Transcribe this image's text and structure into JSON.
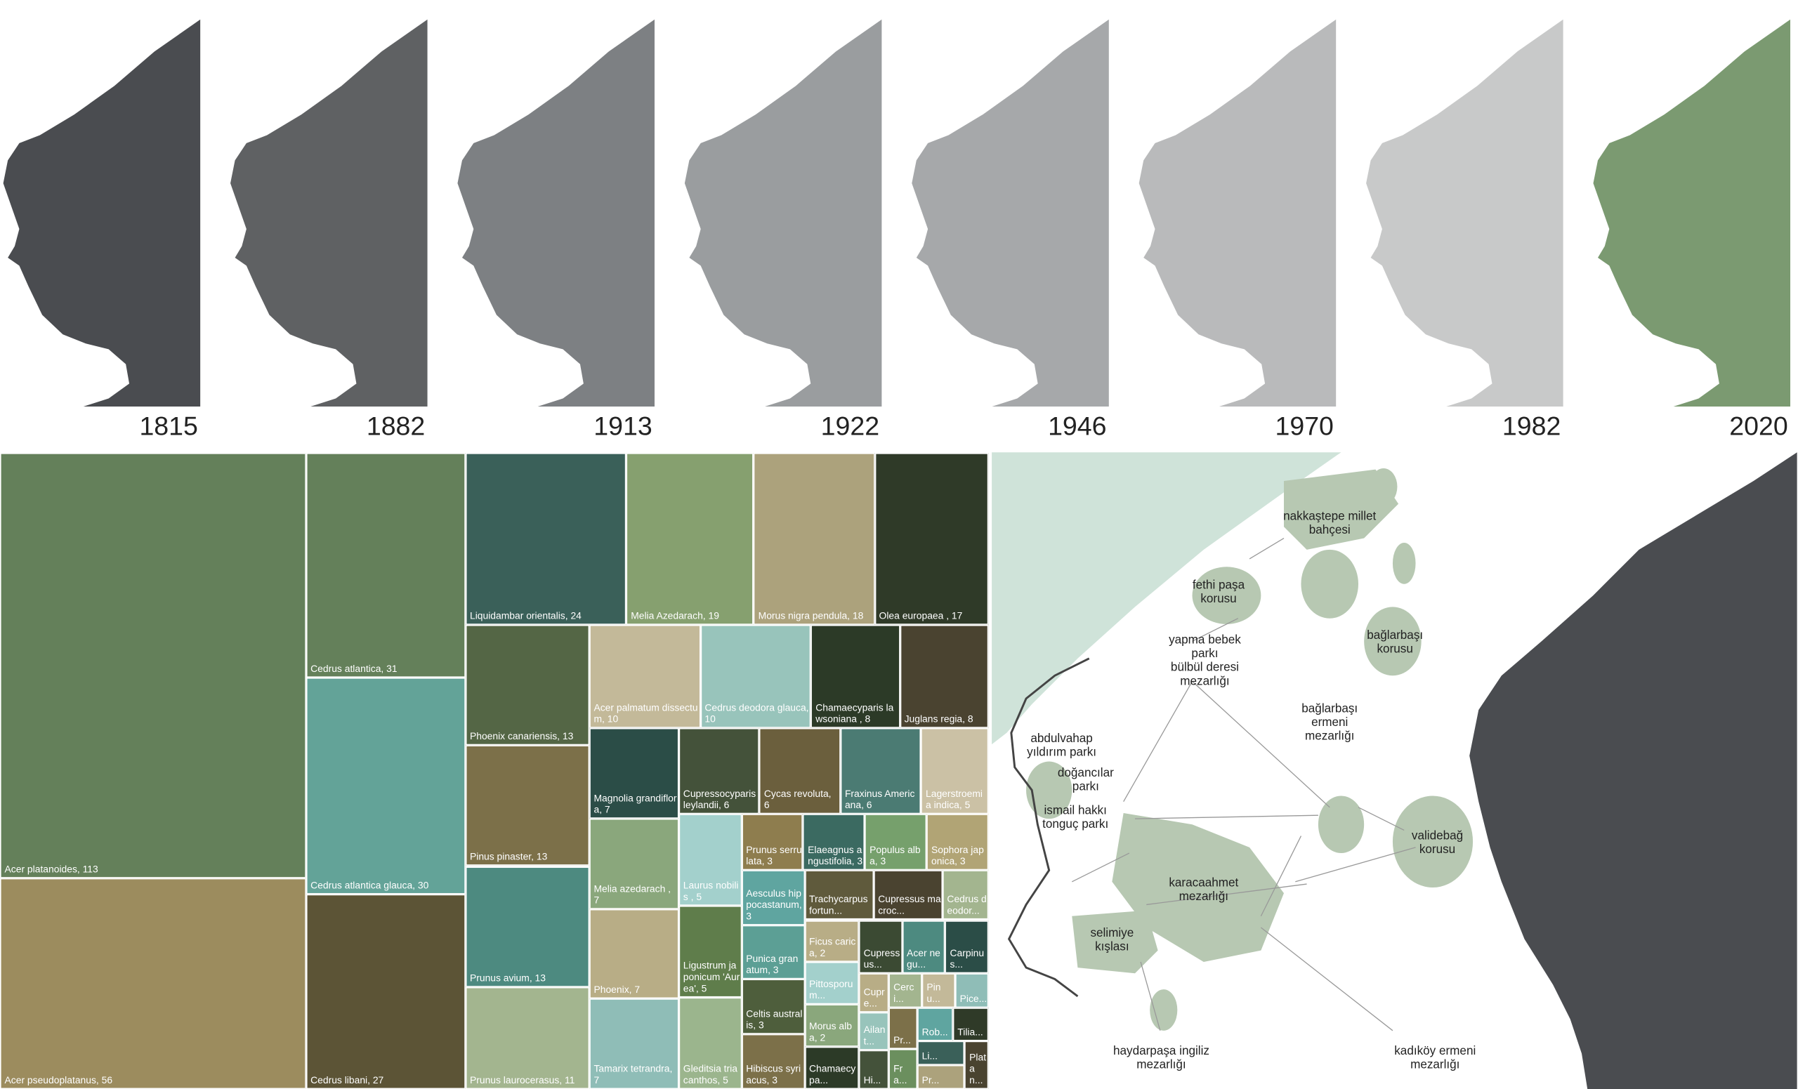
{
  "timeline": {
    "years": [
      "1815",
      "1882",
      "1913",
      "1922",
      "1946",
      "1970",
      "1982",
      "2020"
    ],
    "colors": [
      "#4a4c50",
      "#5f6163",
      "#7d8083",
      "#9a9d9f",
      "#a6a8aa",
      "#b9babb",
      "#c8c9c9",
      "#7b9a71"
    ]
  },
  "chart_data": {
    "type": "treemap",
    "values": [
      113,
      56,
      31,
      30,
      27,
      24,
      19,
      18,
      17,
      13,
      13,
      13,
      11,
      10,
      10,
      8,
      8,
      7,
      7,
      7,
      7,
      6,
      6,
      6,
      5,
      5,
      5,
      5,
      3,
      3,
      3,
      3,
      3,
      3,
      3,
      3,
      3,
      3,
      2,
      2,
      2,
      2,
      2,
      2,
      2,
      2,
      1,
      1,
      1,
      1,
      1,
      1,
      1,
      1,
      1,
      1,
      1,
      1,
      1
    ],
    "value_labels": [
      "Acer platanoides, 113",
      "Acer pseudoplatanus, 56",
      "Cedrus atlantica, 31",
      "Cedrus atlantica glauca, 30",
      "Cedrus libani, 27",
      "Liquidambar orientalis, 24",
      "Melia Azedarach, 19",
      "Morus nigra pendula, 18",
      "Olea europaea , 17",
      "Phoenix canariensis, 13",
      "Pinus pinaster, 13",
      "Prunus avium, 13",
      "Prunus laurocerasus, 11",
      "Acer palmatum dissectum, 10",
      "Cedrus deodora glauca, 10",
      "Chamaecyparis lawsoniana , 8",
      "Juglans regia, 8",
      "Magnolia grandiflora, 7",
      "Melia azedarach , 7",
      "Phoenix, 7",
      "Tamarix tetrandra, 7",
      "Cupressocyparis leylandii, 6",
      "Cycas revoluta, 6",
      "Fraxinus Americana, 6",
      "Lagerstroemia indica, 5",
      "Laurus nobilis , 5",
      "Ligustrum japonicum 'Aurea', 5",
      "Gleditsia triacanthos, 5",
      "Prunus serrulata, 3",
      "Elaeagnus angustifolia, 3",
      "Populus alba, 3",
      "Sophora japonica, 3",
      "Aesculus hippocastanum, 3",
      "Punica granatum, 3",
      "Celtis australis, 3",
      "Hibiscus syriacus, 3",
      "Trachycarpus fortun...",
      "Cupressus macroc...",
      "Cedrus deodor...",
      "Ficus carica, 2",
      "Pittosporum...",
      "Morus alba, 2",
      "Chamaecypa...",
      "Cupressus...",
      "Acer negu...",
      "Carpinus...",
      "Cupre...",
      "Ailant...",
      "Hi...",
      "Cerci...",
      "Pinu...",
      "Pice...",
      "Pr...",
      "Fra...",
      "Rob...",
      "Tilia...",
      "Li...",
      "Pr...",
      "Platan..."
    ],
    "colors": [
      "#64805a",
      "#9c8c5e",
      "#64805a",
      "#63a398",
      "#5c5436",
      "#3a6059",
      "#86a06f",
      "#aca27c",
      "#2f3a28",
      "#546645",
      "#7c7049",
      "#4d8a80",
      "#a3b58f",
      "#c3b999",
      "#98c4bb",
      "#2c3a27",
      "#4a4330",
      "#2b4d47",
      "#8aa77c",
      "#b8ad86",
      "#8fbdb7",
      "#44523a",
      "#6b5f3d",
      "#4b7b73",
      "#cbc1a5",
      "#a3d0cc",
      "#5f7d4b",
      "#9bb58d",
      "#8e7d4e",
      "#3b6a61",
      "#76a06c",
      "#b1a475",
      "#5fa5a0",
      "#5c9f95",
      "#4e5e3c",
      "#7c7049",
      "#5f5a3c",
      "#4a4330",
      "#a3b58f",
      "#b8ad86",
      "#a3d0cc",
      "#8aa77c",
      "#2c3a27",
      "#3b4a33",
      "#4d8a80",
      "#2b4d47",
      "#b8ad86",
      "#98c4bb",
      "#44523a",
      "#a3b58f",
      "#c3b999",
      "#8fbdb7",
      "#7c7049",
      "#6b8f5e",
      "#5fa5a0",
      "#2f3a28",
      "#3a6059",
      "#aca27c",
      "#4a4330"
    ]
  },
  "map": {
    "labels": [
      [
        "nakkaştepe millet",
        "bahçesi"
      ],
      [
        "fethi paşa",
        "korusu"
      ],
      [
        "bağlarbaşı",
        "korusu"
      ],
      [
        "yapma bebek",
        "parkı",
        "bülbül deresi",
        "mezarlığı"
      ],
      [
        "bağlarbaşı",
        "ermeni",
        "mezarlığı"
      ],
      [
        "abdulvahap",
        "yıldırım parkı"
      ],
      [
        "doğancılar",
        "parkı"
      ],
      [
        "ismail hakkı",
        "tonguç parkı"
      ],
      [
        "validebağ",
        "korusu"
      ],
      [
        "karacaahmet",
        "mezarlığı"
      ],
      [
        "selimiye",
        "kışlası"
      ],
      [
        "haydarpaşa ingiliz",
        "mezarlığı"
      ],
      [
        "kadıköy ermeni",
        "mezarlığı"
      ]
    ]
  }
}
